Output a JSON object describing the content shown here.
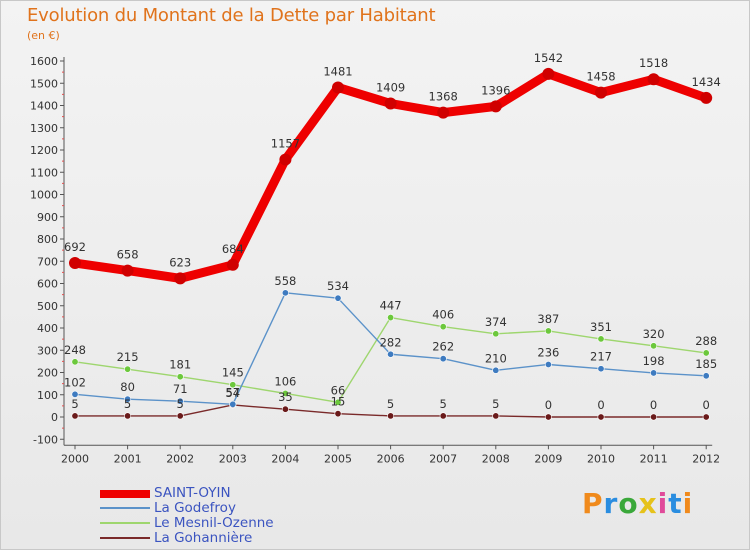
{
  "title": "Evolution du Montant de la Dette par Habitant",
  "subtitle": "(en €)",
  "logo": {
    "text": "Proxiti",
    "letter_colors": [
      "#f08a1c",
      "#2a8de0",
      "#3aa83a",
      "#e6c21a",
      "#e04a9a",
      "#2a8de0",
      "#f08a1c"
    ]
  },
  "chart_data": {
    "type": "line",
    "x": [
      "2000",
      "2001",
      "2002",
      "2003",
      "2004",
      "2005",
      "2006",
      "2007",
      "2008",
      "2009",
      "2010",
      "2011",
      "2012"
    ],
    "ylim": [
      -100,
      1600
    ],
    "yticks": [
      -100,
      0,
      100,
      200,
      300,
      400,
      500,
      600,
      700,
      800,
      900,
      1000,
      1100,
      1200,
      1300,
      1400,
      1500,
      1600
    ],
    "grid": false,
    "legend_position": "bottom-left",
    "series": [
      {
        "name": "SAINT-OYIN",
        "color": "#ee0000",
        "point_color": "#d00000",
        "values": [
          692,
          658,
          623,
          684,
          1157,
          1481,
          1409,
          1368,
          1396,
          1542,
          1458,
          1518,
          1434
        ]
      },
      {
        "name": "La Godefroy",
        "color": "#5b92c9",
        "point_color": "#3e7bc0",
        "values": [
          102,
          80,
          71,
          57,
          558,
          534,
          282,
          262,
          210,
          236,
          217,
          198,
          185
        ]
      },
      {
        "name": "Le Mesnil-Ozenne",
        "color": "#9ed66e",
        "point_color": "#6cc83c",
        "values": [
          248,
          215,
          181,
          145,
          106,
          66,
          447,
          406,
          374,
          387,
          351,
          320,
          288
        ]
      },
      {
        "name": "La Gohannière",
        "color": "#7a2a2a",
        "point_color": "#6a1a1a",
        "values": [
          5,
          5,
          5,
          54,
          35,
          15,
          5,
          5,
          5,
          0,
          0,
          0,
          0
        ]
      }
    ]
  }
}
